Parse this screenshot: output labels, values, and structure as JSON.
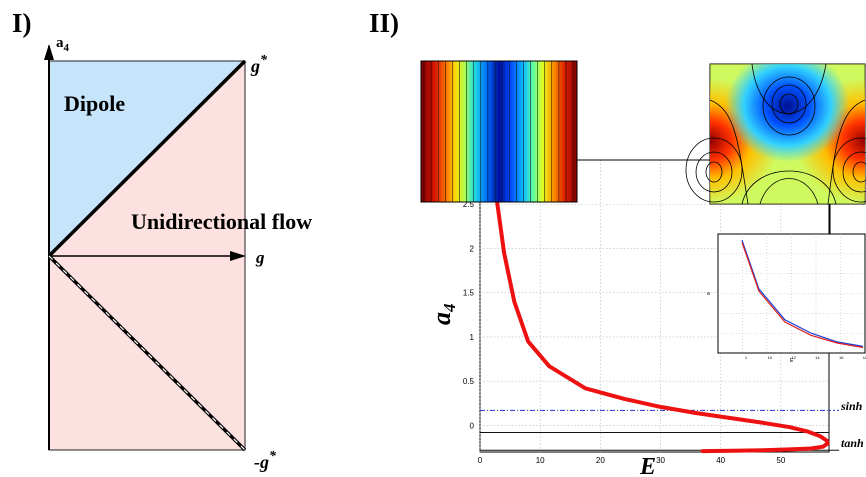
{
  "figure": {
    "panel_labels": [
      "I)",
      "II)"
    ]
  },
  "panel_i": {
    "y_axis_label": "a",
    "y_axis_subscript": "4",
    "x_axis_label": "g",
    "top_right_label": "g",
    "bottom_right_label": "-g",
    "star": "*",
    "region_dipole": "Dipole",
    "region_unidirectional": "Unidirectional flow",
    "colors": {
      "dipole": "#c6e4fa",
      "unidirectional": "#fde0e0"
    }
  },
  "chart_data": [
    {
      "type": "line",
      "title": "",
      "xlabel": "E",
      "ylabel": "a",
      "ylabel_subscript": "4",
      "xlim": [
        0,
        58
      ],
      "ylim": [
        -0.3,
        3.0
      ],
      "x_ticks": [
        "0",
        "10",
        "20",
        "30",
        "40",
        "50"
      ],
      "y_ticks": [
        "0",
        "0.5",
        "1",
        "1.5",
        "2",
        "2.5"
      ],
      "grid": true,
      "series": [
        {
          "color": "#ee1111",
          "x": [
            2.2,
            2.9,
            4.0,
            5.7,
            8.0,
            11.5,
            17.5,
            24.0,
            30.0,
            36.0,
            42.0,
            47.0,
            51.5,
            54.5,
            56.5,
            57.6,
            57.8,
            57.0,
            55.0,
            52.0,
            47.0,
            42.0,
            37.0
          ],
          "y": [
            2.95,
            2.5,
            1.95,
            1.4,
            0.95,
            0.67,
            0.42,
            0.3,
            0.21,
            0.14,
            0.08,
            0.03,
            -0.02,
            -0.07,
            -0.12,
            -0.17,
            -0.2,
            -0.24,
            -0.26,
            -0.27,
            -0.28,
            -0.285,
            -0.29
          ]
        }
      ],
      "reference_lines": [
        {
          "label": "sinh",
          "y": 0.17,
          "style": "dashdot",
          "color": "#2233cc"
        },
        {
          "label": "tanh",
          "y": -0.28,
          "style": "solid",
          "color": "#111111"
        },
        {
          "y": -0.08,
          "style": "solid",
          "color": "#111111"
        }
      ]
    },
    {
      "type": "line",
      "xlabel": "E",
      "ylabel": "a",
      "grid": true,
      "x_ticks": [
        "1",
        "10",
        "12",
        "14",
        "16",
        "18"
      ],
      "series": [
        {
          "color": "#1a3fd6",
          "x": [
            0.35,
            1.0,
            2.0,
            3.0,
            4.0,
            5.0
          ],
          "y": [
            5.8,
            3.6,
            2.2,
            1.6,
            1.2,
            1.0
          ]
        },
        {
          "color": "#e02020",
          "x": [
            0.35,
            1.0,
            2.0,
            3.0,
            4.0,
            5.0
          ],
          "y": [
            5.7,
            3.5,
            2.1,
            1.5,
            1.15,
            0.95
          ]
        }
      ]
    }
  ],
  "insets": {
    "left_map": "colormap of vertical stripes",
    "right_map": "contour map"
  }
}
